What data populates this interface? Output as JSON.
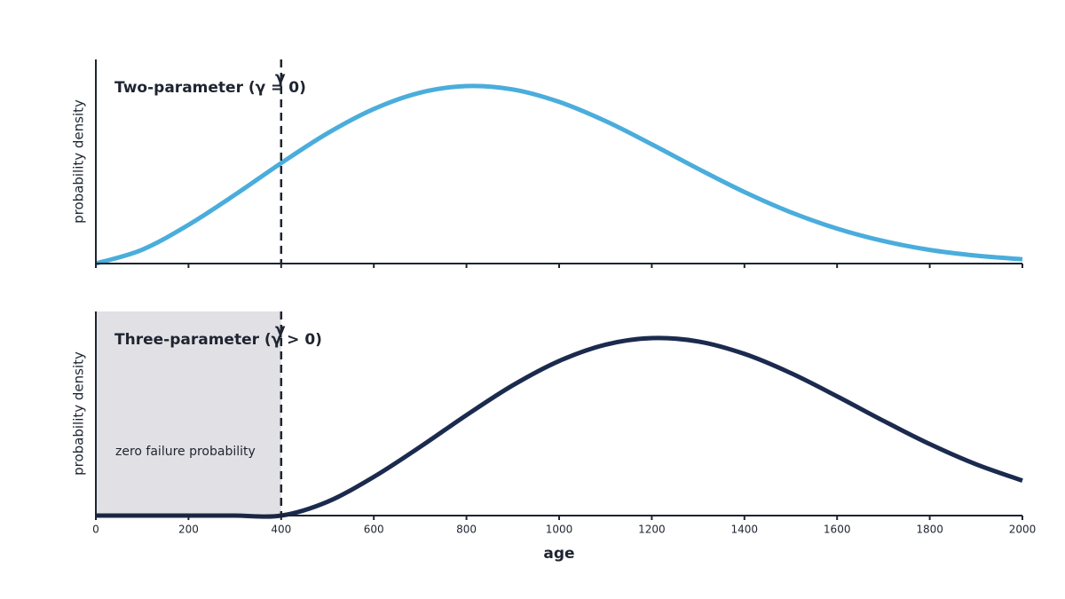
{
  "chart_data": [
    {
      "type": "line",
      "title": "Two-parameter (γ = 0)",
      "ylabel": "probability density",
      "x": [
        0,
        100,
        200,
        300,
        400,
        500,
        600,
        700,
        800,
        900,
        1000,
        1100,
        1200,
        1300,
        1400,
        1500,
        1600,
        1700,
        1800,
        1900,
        2000
      ],
      "series": [
        {
          "color": "#4aaddc",
          "values": [
            0,
            0.078,
            0.218,
            0.387,
            0.566,
            0.734,
            0.871,
            0.963,
            1.0,
            0.981,
            0.911,
            0.803,
            0.672,
            0.534,
            0.403,
            0.289,
            0.197,
            0.127,
            0.077,
            0.045,
            0.024
          ]
        }
      ],
      "xlim": [
        0,
        2000
      ],
      "xticks": [
        0,
        200,
        400,
        600,
        800,
        1000,
        1200,
        1400,
        1600,
        1800,
        2000
      ],
      "tick_labels": false,
      "ylim": [
        0,
        1.15
      ],
      "vline": {
        "x": 400,
        "label": "γ"
      }
    },
    {
      "type": "line",
      "title": "Three-parameter (γ > 0)",
      "ylabel": "probability density",
      "xlabel": "age",
      "x": [
        0,
        100,
        200,
        300,
        400,
        500,
        600,
        700,
        800,
        900,
        1000,
        1100,
        1200,
        1300,
        1400,
        1500,
        1600,
        1700,
        1800,
        1900,
        2000
      ],
      "series": [
        {
          "color": "#1b2a4e",
          "values": [
            0,
            0,
            0,
            0,
            0,
            0.078,
            0.218,
            0.387,
            0.566,
            0.734,
            0.871,
            0.963,
            1.0,
            0.981,
            0.911,
            0.803,
            0.672,
            0.534,
            0.403,
            0.289,
            0.197
          ]
        }
      ],
      "xlim": [
        0,
        2000
      ],
      "xticks": [
        0,
        200,
        400,
        600,
        800,
        1000,
        1200,
        1400,
        1600,
        1800,
        2000
      ],
      "tick_labels": true,
      "ylim": [
        0,
        1.15
      ],
      "vline": {
        "x": 400,
        "label": "γ"
      },
      "shade": {
        "range": [
          0,
          400
        ],
        "label": "zero failure probability",
        "color": "#e1e1e5"
      }
    }
  ]
}
